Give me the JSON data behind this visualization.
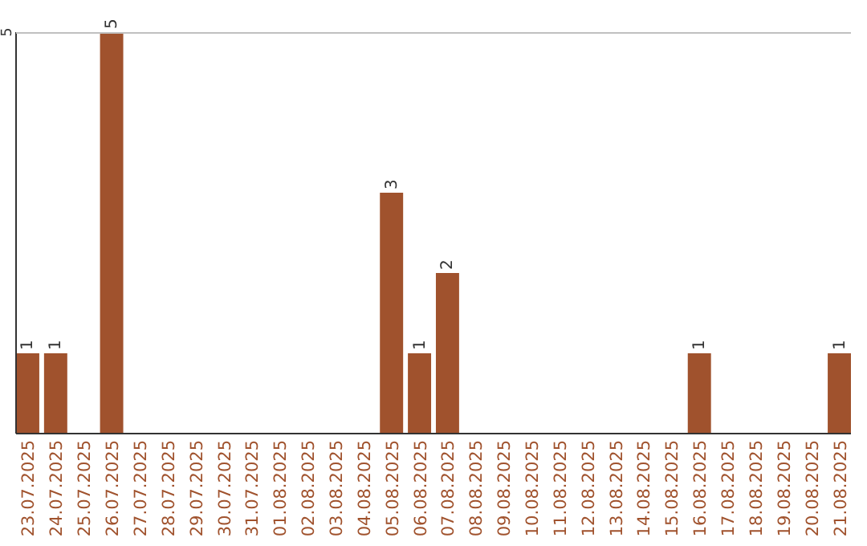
{
  "chart_data": {
    "type": "bar",
    "categories": [
      "23.07.2025",
      "24.07.2025",
      "25.07.2025",
      "26.07.2025",
      "27.07.2025",
      "28.07.2025",
      "29.07.2025",
      "30.07.2025",
      "31.07.2025",
      "01.08.2025",
      "02.08.2025",
      "03.08.2025",
      "04.08.2025",
      "05.08.2025",
      "06.08.2025",
      "07.08.2025",
      "08.08.2025",
      "09.08.2025",
      "10.08.2025",
      "11.08.2025",
      "12.08.2025",
      "13.08.2025",
      "14.08.2025",
      "15.08.2025",
      "16.08.2025",
      "17.08.2025",
      "18.08.2025",
      "19.08.2025",
      "20.08.2025",
      "21.08.2025"
    ],
    "values": [
      1,
      1,
      0,
      5,
      0,
      0,
      0,
      0,
      0,
      0,
      0,
      0,
      0,
      3,
      1,
      2,
      0,
      0,
      0,
      0,
      0,
      0,
      0,
      0,
      1,
      0,
      0,
      0,
      0,
      1
    ],
    "value_labels": [
      "1",
      "1",
      null,
      "5",
      null,
      null,
      null,
      null,
      null,
      null,
      null,
      null,
      null,
      "3",
      "1",
      "2",
      null,
      null,
      null,
      null,
      null,
      null,
      null,
      null,
      "1",
      null,
      null,
      null,
      null,
      "1"
    ],
    "color": "#a0522d",
    "ylim": [
      0,
      5
    ],
    "yticks": [
      5
    ]
  }
}
